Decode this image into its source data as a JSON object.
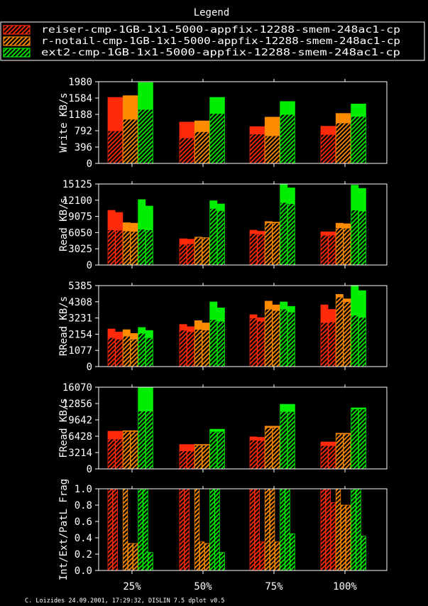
{
  "colors": {
    "background": "#000000",
    "foreground": "#ffffff",
    "reiser": "#ff2a0a",
    "notail": "#ff8c00",
    "ext2": "#00ee00"
  },
  "legend": {
    "title": "Legend",
    "entries": [
      {
        "label": "reiser-cmp-1GB-1x1-5000-appfix-12288-smem-248ac1-cp",
        "color": "#ff2a0a"
      },
      {
        "label": "r-notail-cmp-1GB-1x1-5000-appfix-12288-smem-248ac1-cp",
        "color": "#ff8c00"
      },
      {
        "label": "ext2-cmp-1GB-1x1-5000-appfix-12288-smem-248ac1-cp",
        "color": "#00ee00"
      }
    ]
  },
  "footer": "C. Loizides 24.09.2001, 17:29:32, DISLIN 7.5 dplot v0.5",
  "chart_data": [
    {
      "type": "bar",
      "ylabel": "Write KB/s",
      "ylim": [
        0,
        1980
      ],
      "yticks": [
        "0",
        "396",
        "792",
        "1188",
        "1584",
        "1980"
      ],
      "categories": [
        "25%",
        "50%",
        "75%",
        "100%"
      ],
      "series": [
        {
          "color": "#ff2a0a",
          "bars": [
            [
              1600,
              780
            ],
            [
              1000,
              610
            ],
            [
              890,
              700
            ],
            [
              900,
              690
            ]
          ]
        },
        {
          "color": "#ff8c00",
          "bars": [
            [
              1640,
              1060
            ],
            [
              1030,
              760
            ],
            [
              1120,
              660
            ],
            [
              1210,
              970
            ]
          ]
        },
        {
          "color": "#00ee00",
          "bars": [
            [
              1960,
              1300
            ],
            [
              1600,
              1200
            ],
            [
              1500,
              1180
            ],
            [
              1440,
              1130
            ]
          ]
        }
      ]
    },
    {
      "type": "bar",
      "ylabel": "Read KB/s",
      "ylim": [
        0,
        15125
      ],
      "yticks": [
        "0",
        "3025",
        "6050",
        "9075",
        "12100",
        "15125"
      ],
      "categories": [
        "25%",
        "50%",
        "75%",
        "100%"
      ],
      "series": [
        {
          "color": "#ff2a0a",
          "bars": [
            [
              10200,
              6500
            ],
            [
              9800,
              6400
            ],
            [
              4900,
              3800
            ],
            [
              4800,
              3900
            ],
            [
              6500,
              5800
            ],
            [
              6300,
              5700
            ],
            [
              6200,
              5500
            ],
            [
              6200,
              5500
            ]
          ]
        },
        {
          "color": "#ff8c00",
          "bars": [
            [
              7900,
              6300
            ],
            [
              7800,
              6200
            ],
            [
              5200,
              5100
            ],
            [
              5100,
              5000
            ],
            [
              8100,
              7800
            ],
            [
              8000,
              7800
            ],
            [
              7800,
              6900
            ],
            [
              7700,
              6800
            ]
          ]
        },
        {
          "color": "#00ee00",
          "bars": [
            [
              12200,
              6600
            ],
            [
              11000,
              6500
            ],
            [
              12000,
              10500
            ],
            [
              11400,
              10100
            ],
            [
              15100,
              11600
            ],
            [
              14400,
              11400
            ],
            [
              14900,
              10200
            ],
            [
              14300,
              10000
            ]
          ]
        }
      ]
    },
    {
      "type": "bar",
      "ylabel": "RRead KB/s",
      "ylim": [
        0,
        5385
      ],
      "yticks": [
        "0",
        "1077",
        "2154",
        "3231",
        "4308",
        "5385"
      ],
      "categories": [
        "25%",
        "50%",
        "75%",
        "100%"
      ],
      "series": [
        {
          "color": "#ff2a0a",
          "bars": [
            [
              2500,
              1900
            ],
            [
              2300,
              1800
            ],
            [
              2800,
              2400
            ],
            [
              2650,
              2300
            ],
            [
              3450,
              3200
            ],
            [
              3250,
              3000
            ],
            [
              4100,
              2900
            ],
            [
              3800,
              2950
            ]
          ]
        },
        {
          "color": "#ff8c00",
          "bars": [
            [
              2450,
              2000
            ],
            [
              2200,
              1800
            ],
            [
              3050,
              2450
            ],
            [
              2900,
              2400
            ],
            [
              4350,
              3800
            ],
            [
              4100,
              3700
            ],
            [
              4800,
              4600
            ],
            [
              4500,
              4300
            ]
          ]
        },
        {
          "color": "#00ee00",
          "bars": [
            [
              2600,
              2200
            ],
            [
              2400,
              1900
            ],
            [
              4300,
              3100
            ],
            [
              3900,
              3000
            ],
            [
              4300,
              3800
            ],
            [
              4000,
              3600
            ],
            [
              5400,
              3400
            ],
            [
              5050,
              3250
            ]
          ]
        }
      ]
    },
    {
      "type": "bar",
      "ylabel": "FRead KB/s",
      "ylim": [
        0,
        16070
      ],
      "yticks": [
        "0",
        "3214",
        "6428",
        "9642",
        "12856",
        "16070"
      ],
      "categories": [
        "25%",
        "50%",
        "75%",
        "100%"
      ],
      "series": [
        {
          "color": "#ff2a0a",
          "bars": [
            [
              7400,
              5800
            ],
            [
              7400,
              5800
            ],
            [
              4800,
              3500
            ],
            [
              4800,
              3500
            ],
            [
              6300,
              5600
            ],
            [
              6200,
              5500
            ],
            [
              5300,
              4500
            ],
            [
              5300,
              4500
            ]
          ]
        },
        {
          "color": "#ff8c00",
          "bars": [
            [
              7500,
              7300
            ],
            [
              7500,
              7300
            ],
            [
              4800,
              4600
            ],
            [
              4800,
              4600
            ],
            [
              8400,
              8100
            ],
            [
              8400,
              8100
            ],
            [
              7000,
              6800
            ],
            [
              7000,
              6800
            ]
          ]
        },
        {
          "color": "#00ee00",
          "bars": [
            [
              16000,
              11300
            ],
            [
              16000,
              11300
            ],
            [
              7800,
              7300
            ],
            [
              7800,
              7300
            ],
            [
              12700,
              11200
            ],
            [
              12700,
              11200
            ],
            [
              12000,
              11700
            ],
            [
              12000,
              11700
            ]
          ]
        }
      ]
    },
    {
      "type": "bar",
      "ylabel": "Int/Ext/PatL Frag",
      "ylim": [
        0,
        1.0
      ],
      "yticks": [
        "0.0",
        "0.2",
        "0.4",
        "0.6",
        "0.8",
        "1.0"
      ],
      "categories": [
        "25%",
        "50%",
        "75%",
        "100%"
      ],
      "series": [
        {
          "color": "#ff2a0a",
          "bars": [
            [
              1.0,
              1.0
            ],
            [
              1.0,
              1.0
            ],
            [
              0.0,
              0.0
            ],
            [
              1.0,
              1.0
            ],
            [
              1.0,
              1.0
            ],
            [
              0.0,
              0.0
            ],
            [
              1.0,
              1.0
            ],
            [
              1.0,
              1.0
            ],
            [
              0.35,
              0.35
            ],
            [
              1.0,
              1.0
            ],
            [
              1.0,
              1.0
            ],
            [
              0.83,
              0.83
            ]
          ]
        },
        {
          "color": "#ff8c00",
          "bars": [
            [
              1.0,
              1.0
            ],
            [
              0.33,
              0.33
            ],
            [
              0.33,
              0.33
            ],
            [
              1.0,
              1.0
            ],
            [
              0.35,
              0.35
            ],
            [
              0.33,
              0.33
            ],
            [
              1.0,
              1.0
            ],
            [
              1.0,
              1.0
            ],
            [
              0.35,
              0.35
            ],
            [
              1.0,
              1.0
            ],
            [
              0.8,
              0.8
            ],
            [
              0.8,
              0.8
            ]
          ]
        },
        {
          "color": "#00ee00",
          "bars": [
            [
              1.0,
              1.0
            ],
            [
              1.0,
              1.0
            ],
            [
              0.22,
              0.22
            ],
            [
              1.0,
              1.0
            ],
            [
              1.0,
              1.0
            ],
            [
              0.22,
              0.22
            ],
            [
              1.0,
              1.0
            ],
            [
              1.0,
              1.0
            ],
            [
              0.45,
              0.45
            ],
            [
              1.0,
              1.0
            ],
            [
              1.0,
              1.0
            ],
            [
              0.42,
              0.42
            ]
          ]
        }
      ]
    }
  ]
}
